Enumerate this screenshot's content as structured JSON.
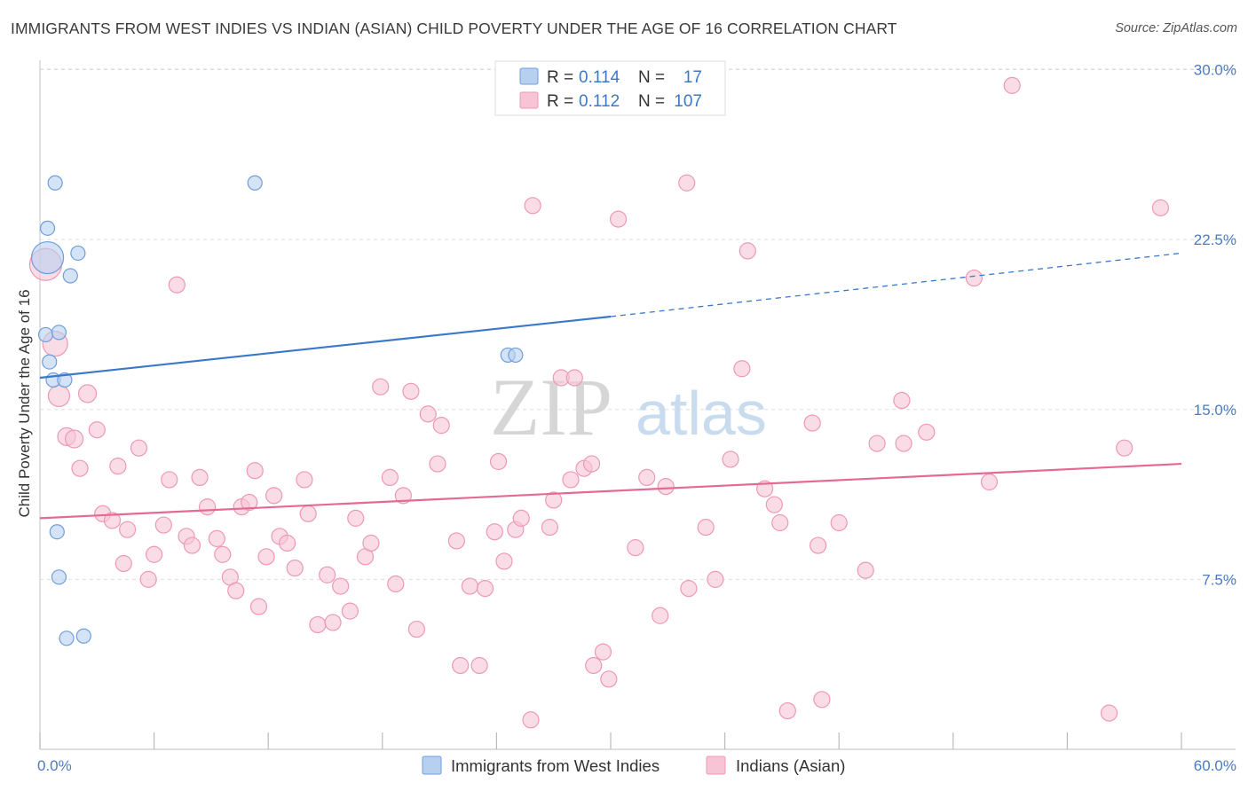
{
  "title": "IMMIGRANTS FROM WEST INDIES VS INDIAN (ASIAN) CHILD POVERTY UNDER THE AGE OF 16 CORRELATION CHART",
  "source": "Source: ZipAtlas.com",
  "watermark": {
    "zip": "ZIP",
    "atlas": "atlas"
  },
  "colors": {
    "blue": "#3a78c9",
    "blue_fill": "#b8d0f0",
    "blue_stroke": "#6f9fdb",
    "pink": "#e46a95",
    "pink_fill": "#f7c4d5",
    "pink_stroke": "#ee98b6",
    "tick_label": "#4a7bc4",
    "grid": "#dddddd"
  },
  "legend": {
    "rows": [
      {
        "r_label": "R =",
        "r_value": "0.114",
        "n_label": "N =",
        "n_value": "17"
      },
      {
        "r_label": "R =",
        "r_value": "0.112",
        "n_label": "N =",
        "n_value": "107"
      }
    ]
  },
  "chart_data": {
    "type": "scatter",
    "title": "IMMIGRANTS FROM WEST INDIES VS INDIAN (ASIAN) CHILD POVERTY UNDER THE AGE OF 16 CORRELATION CHART",
    "xlabel": "",
    "ylabel": "Child Poverty Under the Age of 16",
    "xlim": [
      0,
      60
    ],
    "ylim": [
      0,
      30.75
    ],
    "x_tick_labels": [
      {
        "value": 0,
        "label": "0.0%"
      },
      {
        "value": 60,
        "label": "60.0%"
      }
    ],
    "y_tick_labels": [
      {
        "value": 7.5,
        "label": "7.5%"
      },
      {
        "value": 15,
        "label": "15.0%"
      },
      {
        "value": 22.5,
        "label": "22.5%"
      },
      {
        "value": 30,
        "label": "30.0%"
      }
    ],
    "grid": true,
    "legend_position": "top-center",
    "series": [
      {
        "name": "Immigrants from West Indies",
        "color": "#3a78c9",
        "R": 0.114,
        "N": 17,
        "trend": {
          "x0": 0,
          "y0": 16.4,
          "x1": 30,
          "y1": 19.1,
          "dashed_to_x": 60,
          "dashed_to_y": 21.9
        },
        "points": [
          [
            0.4,
            21.7,
            18
          ],
          [
            0.8,
            25.0,
            8
          ],
          [
            0.4,
            23.0,
            8
          ],
          [
            2.0,
            21.9,
            8
          ],
          [
            1.6,
            20.9,
            8
          ],
          [
            0.3,
            18.3,
            8
          ],
          [
            1.0,
            18.4,
            8
          ],
          [
            0.5,
            17.1,
            8
          ],
          [
            0.7,
            16.3,
            8
          ],
          [
            1.3,
            16.3,
            8
          ],
          [
            11.3,
            25.0,
            8
          ],
          [
            24.6,
            17.4,
            8
          ],
          [
            25.0,
            17.4,
            8
          ],
          [
            0.9,
            9.6,
            8
          ],
          [
            1.0,
            7.6,
            8
          ],
          [
            1.4,
            4.9,
            8
          ],
          [
            2.3,
            5.0,
            8
          ]
        ]
      },
      {
        "name": "Indians (Asian)",
        "color": "#e46a95",
        "R": 0.112,
        "N": 107,
        "trend": {
          "x0": 0,
          "y0": 10.2,
          "x1": 60,
          "y1": 12.6
        },
        "points": [
          [
            0.3,
            21.4,
            18
          ],
          [
            0.8,
            17.9,
            14
          ],
          [
            1.0,
            15.6,
            12
          ],
          [
            1.4,
            13.8,
            10
          ],
          [
            1.8,
            13.7,
            10
          ],
          [
            2.5,
            15.7,
            10
          ],
          [
            3.0,
            14.1,
            9
          ],
          [
            2.1,
            12.4,
            9
          ],
          [
            3.3,
            10.4,
            9
          ],
          [
            3.8,
            10.1,
            9
          ],
          [
            4.1,
            12.5,
            9
          ],
          [
            5.2,
            13.3,
            9
          ],
          [
            4.6,
            9.7,
            9
          ],
          [
            4.4,
            8.2,
            9
          ],
          [
            5.7,
            7.5,
            9
          ],
          [
            6.0,
            8.6,
            9
          ],
          [
            6.8,
            11.9,
            9
          ],
          [
            6.5,
            9.9,
            9
          ],
          [
            7.2,
            20.5,
            9
          ],
          [
            7.7,
            9.4,
            9
          ],
          [
            8.0,
            9.0,
            9
          ],
          [
            8.4,
            12.0,
            9
          ],
          [
            8.8,
            10.7,
            9
          ],
          [
            9.3,
            9.3,
            9
          ],
          [
            9.6,
            8.6,
            9
          ],
          [
            10.0,
            7.6,
            9
          ],
          [
            10.3,
            7.0,
            9
          ],
          [
            10.6,
            10.7,
            9
          ],
          [
            11.0,
            10.9,
            9
          ],
          [
            11.3,
            12.3,
            9
          ],
          [
            11.5,
            6.3,
            9
          ],
          [
            11.9,
            8.5,
            9
          ],
          [
            12.3,
            11.2,
            9
          ],
          [
            12.6,
            9.4,
            9
          ],
          [
            13.0,
            9.1,
            9
          ],
          [
            13.4,
            8.0,
            9
          ],
          [
            13.9,
            11.9,
            9
          ],
          [
            14.1,
            10.4,
            9
          ],
          [
            14.6,
            5.5,
            9
          ],
          [
            15.1,
            7.7,
            9
          ],
          [
            15.4,
            5.6,
            9
          ],
          [
            15.8,
            7.2,
            9
          ],
          [
            16.3,
            6.1,
            9
          ],
          [
            16.6,
            10.2,
            9
          ],
          [
            17.1,
            8.5,
            9
          ],
          [
            17.4,
            9.1,
            9
          ],
          [
            17.9,
            16.0,
            9
          ],
          [
            18.4,
            12.0,
            9
          ],
          [
            18.7,
            7.3,
            9
          ],
          [
            19.1,
            11.2,
            9
          ],
          [
            19.5,
            15.8,
            9
          ],
          [
            19.8,
            5.3,
            9
          ],
          [
            20.4,
            14.8,
            9
          ],
          [
            20.9,
            12.6,
            9
          ],
          [
            21.1,
            14.3,
            9
          ],
          [
            21.9,
            9.2,
            9
          ],
          [
            22.1,
            3.7,
            9
          ],
          [
            22.6,
            7.2,
            9
          ],
          [
            23.1,
            3.7,
            9
          ],
          [
            23.4,
            7.1,
            9
          ],
          [
            23.9,
            9.6,
            9
          ],
          [
            24.1,
            12.7,
            9
          ],
          [
            24.4,
            8.3,
            9
          ],
          [
            25.0,
            9.7,
            9
          ],
          [
            25.3,
            10.2,
            9
          ],
          [
            25.8,
            1.3,
            9
          ],
          [
            25.9,
            24.0,
            9
          ],
          [
            26.8,
            9.8,
            9
          ],
          [
            27.0,
            11.0,
            9
          ],
          [
            27.4,
            16.4,
            9
          ],
          [
            28.1,
            16.4,
            9
          ],
          [
            27.9,
            11.9,
            9
          ],
          [
            28.6,
            12.4,
            9
          ],
          [
            29.0,
            12.6,
            9
          ],
          [
            29.1,
            3.7,
            9
          ],
          [
            29.6,
            4.3,
            9
          ],
          [
            29.9,
            3.1,
            9
          ],
          [
            30.4,
            23.4,
            9
          ],
          [
            31.3,
            8.9,
            9
          ],
          [
            31.9,
            12.0,
            9
          ],
          [
            32.6,
            5.9,
            9
          ],
          [
            32.9,
            11.6,
            9
          ],
          [
            34.0,
            25.0,
            9
          ],
          [
            34.1,
            7.1,
            9
          ],
          [
            35.0,
            9.8,
            9
          ],
          [
            35.5,
            7.5,
            9
          ],
          [
            36.3,
            12.8,
            9
          ],
          [
            36.9,
            16.8,
            9
          ],
          [
            37.2,
            22.0,
            9
          ],
          [
            38.1,
            11.5,
            9
          ],
          [
            38.6,
            10.8,
            9
          ],
          [
            38.9,
            10.0,
            9
          ],
          [
            39.3,
            1.7,
            9
          ],
          [
            40.6,
            14.4,
            9
          ],
          [
            40.9,
            9.0,
            9
          ],
          [
            41.1,
            2.2,
            9
          ],
          [
            42.0,
            10.0,
            9
          ],
          [
            43.4,
            7.9,
            9
          ],
          [
            44.0,
            13.5,
            9
          ],
          [
            45.3,
            15.4,
            9
          ],
          [
            45.4,
            13.5,
            9
          ],
          [
            46.6,
            14.0,
            9
          ],
          [
            49.1,
            20.8,
            9
          ],
          [
            49.9,
            11.8,
            9
          ],
          [
            51.1,
            29.3,
            9
          ],
          [
            56.2,
            1.6,
            9
          ],
          [
            57.0,
            13.3,
            9
          ],
          [
            58.9,
            23.9,
            9
          ]
        ]
      }
    ]
  }
}
